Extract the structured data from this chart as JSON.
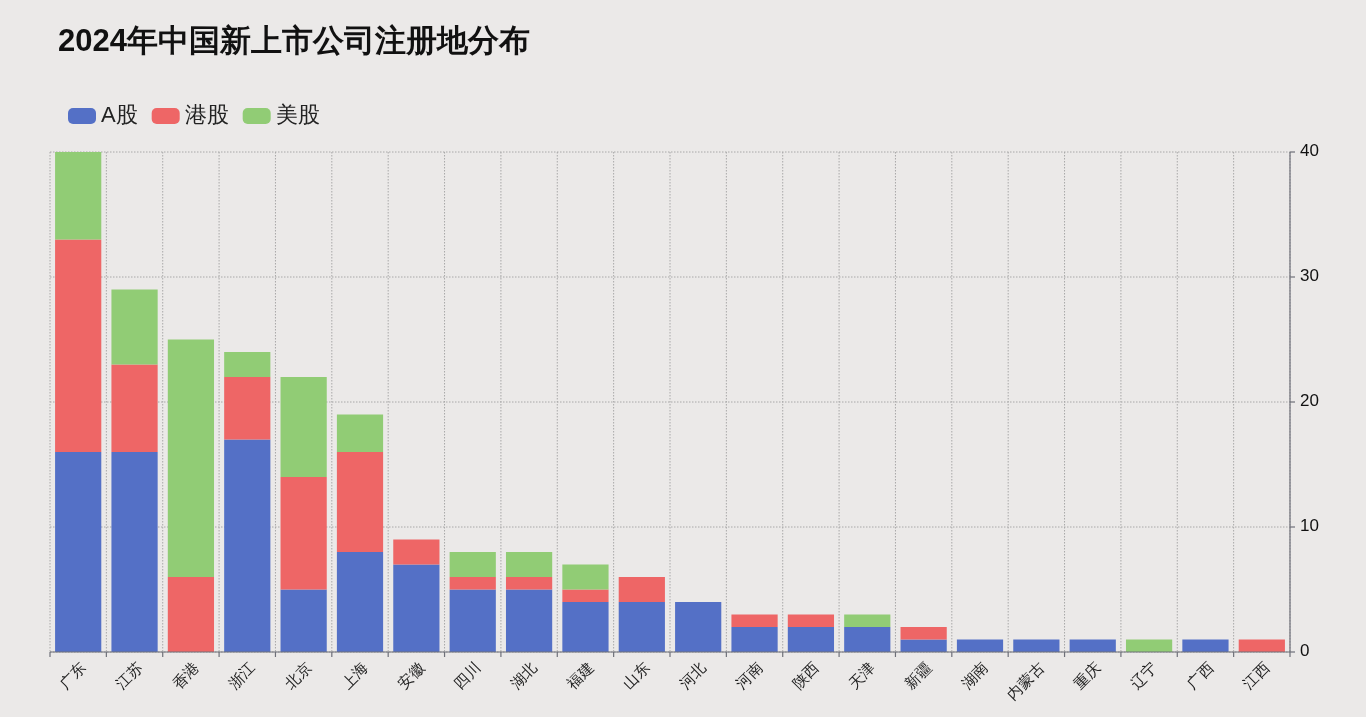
{
  "chart_data": {
    "type": "bar",
    "title": "2024年中国新上市公司注册地分布",
    "categories": [
      "广东",
      "江苏",
      "香港",
      "浙江",
      "北京",
      "上海",
      "安徽",
      "四川",
      "湖北",
      "福建",
      "山东",
      "河北",
      "河南",
      "陕西",
      "天津",
      "新疆",
      "湖南",
      "内蒙古",
      "重庆",
      "辽宁",
      "广西",
      "江西"
    ],
    "series": [
      {
        "name": "A股",
        "color": "#5470c6",
        "values": [
          16,
          16,
          0,
          17,
          5,
          8,
          7,
          5,
          5,
          4,
          4,
          4,
          2,
          2,
          2,
          1,
          1,
          1,
          1,
          0,
          1,
          0
        ]
      },
      {
        "name": "港股",
        "color": "#ee6666",
        "values": [
          17,
          7,
          6,
          5,
          9,
          8,
          2,
          1,
          1,
          1,
          2,
          0,
          1,
          1,
          0,
          1,
          0,
          0,
          0,
          0,
          0,
          1
        ]
      },
      {
        "name": "美股",
        "color": "#91cc75",
        "values": [
          7,
          6,
          19,
          2,
          8,
          3,
          0,
          2,
          2,
          2,
          0,
          0,
          0,
          0,
          1,
          0,
          0,
          0,
          0,
          1,
          0,
          0
        ]
      }
    ],
    "stacked": true,
    "ylim": [
      0,
      40
    ],
    "yticks": [
      0,
      10,
      20,
      30,
      40
    ],
    "grid": true,
    "legend": "top left"
  }
}
